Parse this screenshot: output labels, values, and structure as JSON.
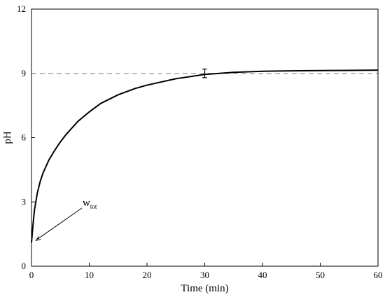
{
  "chart_data": {
    "type": "line",
    "title": "",
    "xlabel": "Time (min)",
    "ylabel": "pH",
    "xlim": [
      0,
      60
    ],
    "ylim": [
      0,
      12
    ],
    "xticks": [
      0,
      10,
      20,
      30,
      40,
      50,
      60
    ],
    "yticks": [
      0,
      3,
      6,
      9,
      12
    ],
    "grid": false,
    "series": [
      {
        "x": [
          0,
          0.25,
          0.5,
          1,
          1.5,
          2,
          3,
          4,
          5,
          6,
          8,
          10,
          12,
          15,
          18,
          20,
          25,
          30,
          35,
          40,
          45,
          50,
          55,
          60
        ],
        "y": [
          1.1,
          1.9,
          2.6,
          3.4,
          3.95,
          4.35,
          4.95,
          5.4,
          5.8,
          6.15,
          6.75,
          7.2,
          7.6,
          8.0,
          8.3,
          8.45,
          8.75,
          8.95,
          9.05,
          9.1,
          9.12,
          9.13,
          9.14,
          9.15
        ],
        "color": "#000000"
      }
    ],
    "reference_line": {
      "y": 9,
      "style": "dashed",
      "color": "#999999"
    },
    "error_bar": {
      "x": 30,
      "y": 9.0,
      "low": 8.8,
      "high": 9.2
    },
    "annotation": {
      "text": "w",
      "subscript": "tot",
      "points_to": {
        "x": 0.8,
        "y": 1.2
      }
    }
  }
}
